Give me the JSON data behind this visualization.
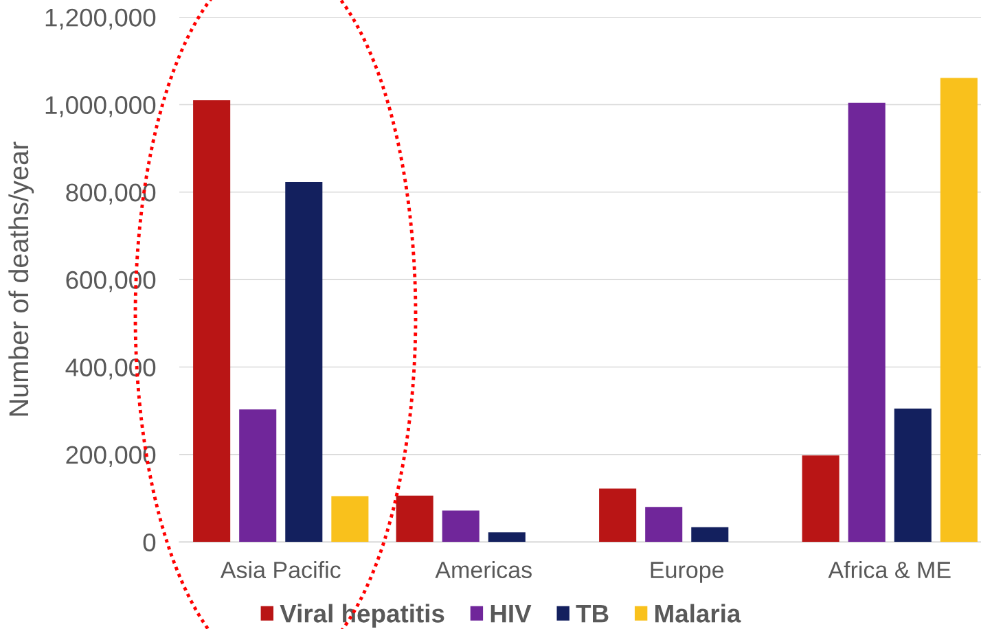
{
  "chart_data": {
    "type": "bar",
    "ylabel": "Number of deaths/year",
    "categories": [
      "Asia Pacific",
      "Americas",
      "Europe",
      "Africa & ME"
    ],
    "series": [
      {
        "name": "Viral hepatitis",
        "color": "#b91515",
        "values": [
          1010000,
          106000,
          122000,
          198000
        ]
      },
      {
        "name": "HIV",
        "color": "#70269a",
        "values": [
          303000,
          72000,
          80000,
          1004000
        ]
      },
      {
        "name": "TB",
        "color": "#13205e",
        "values": [
          823000,
          22000,
          34000,
          305000
        ]
      },
      {
        "name": "Malaria",
        "color": "#f9c11c",
        "values": [
          105000,
          null,
          null,
          1061000
        ]
      }
    ],
    "ylim": [
      0,
      1200000
    ],
    "yticks": [
      {
        "value": 0,
        "label": "0"
      },
      {
        "value": 200000,
        "label": "200,000"
      },
      {
        "value": 400000,
        "label": "400,000"
      },
      {
        "value": 600000,
        "label": "600,000"
      },
      {
        "value": 800000,
        "label": "800,000"
      },
      {
        "value": 1000000,
        "label": "1,000,000"
      },
      {
        "value": 1200000,
        "label": "1,200,000"
      }
    ],
    "grid": "y",
    "legend": "bottom"
  }
}
